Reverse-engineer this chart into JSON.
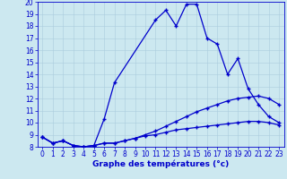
{
  "xlabel": "Graphe des températures (°c)",
  "background_color": "#cce8f0",
  "line_color": "#0000cc",
  "grid_color": "#aaccdd",
  "xlim": [
    -0.5,
    23.5
  ],
  "ylim": [
    8,
    20
  ],
  "xticks": [
    0,
    1,
    2,
    3,
    4,
    5,
    6,
    7,
    8,
    9,
    10,
    11,
    12,
    13,
    14,
    15,
    16,
    17,
    18,
    19,
    20,
    21,
    22,
    23
  ],
  "yticks": [
    8,
    9,
    10,
    11,
    12,
    13,
    14,
    15,
    16,
    17,
    18,
    19,
    20
  ],
  "series1_x": [
    0,
    1,
    2,
    3,
    4,
    5,
    6,
    7,
    11,
    12,
    13,
    14,
    15,
    16,
    17,
    18,
    19,
    20,
    21,
    22,
    23
  ],
  "series1_y": [
    8.8,
    8.3,
    8.5,
    8.1,
    8.0,
    8.1,
    10.3,
    13.3,
    18.5,
    19.3,
    18.0,
    19.8,
    19.8,
    17.0,
    16.5,
    14.0,
    15.3,
    12.8,
    11.5,
    10.5,
    10.0
  ],
  "series2_x": [
    0,
    1,
    2,
    3,
    4,
    5,
    6,
    7,
    8,
    9,
    10,
    11,
    12,
    13,
    14,
    15,
    16,
    17,
    18,
    19,
    20,
    21,
    22,
    23
  ],
  "series2_y": [
    8.8,
    8.3,
    8.5,
    8.1,
    8.0,
    8.1,
    8.3,
    8.3,
    8.5,
    8.7,
    9.0,
    9.3,
    9.7,
    10.1,
    10.5,
    10.9,
    11.2,
    11.5,
    11.8,
    12.0,
    12.1,
    12.2,
    12.0,
    11.5
  ],
  "series3_x": [
    0,
    1,
    2,
    3,
    4,
    5,
    6,
    7,
    8,
    9,
    10,
    11,
    12,
    13,
    14,
    15,
    16,
    17,
    18,
    19,
    20,
    21,
    22,
    23
  ],
  "series3_y": [
    8.8,
    8.3,
    8.5,
    8.1,
    8.0,
    8.1,
    8.3,
    8.3,
    8.5,
    8.7,
    8.9,
    9.0,
    9.2,
    9.4,
    9.5,
    9.6,
    9.7,
    9.8,
    9.9,
    10.0,
    10.1,
    10.1,
    10.0,
    9.8
  ],
  "tick_fontsize": 5.5,
  "xlabel_fontsize": 6.5,
  "marker_size": 3,
  "linewidth": 0.9
}
